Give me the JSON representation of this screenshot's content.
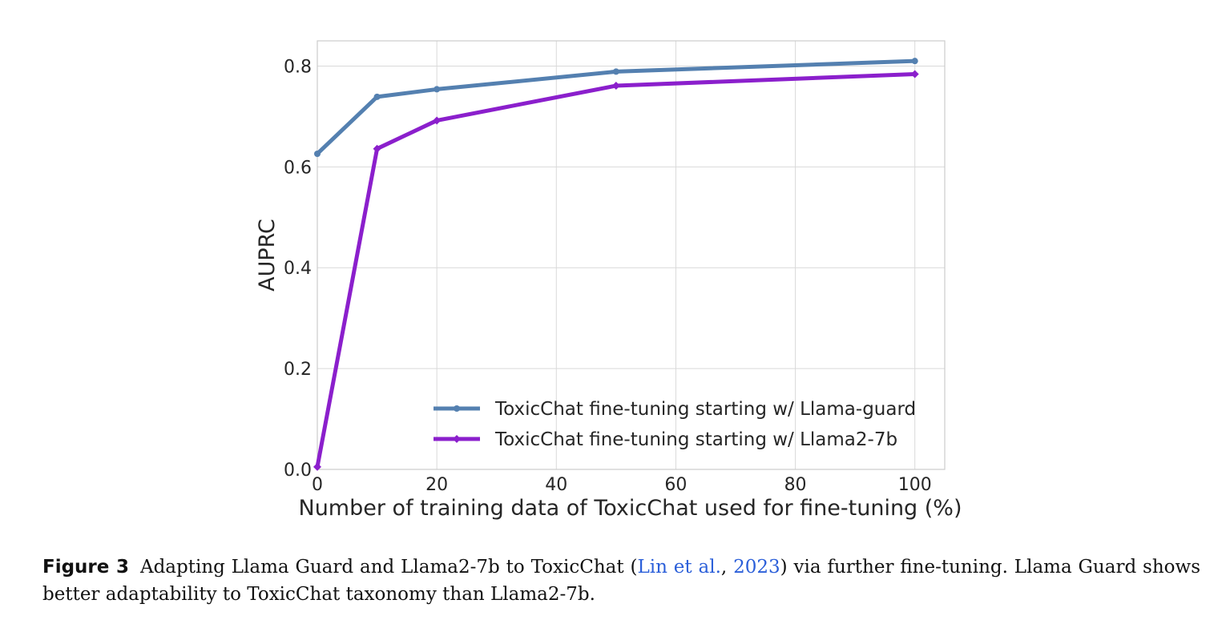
{
  "chart_data": {
    "type": "line",
    "title": "",
    "xlabel": "Number of training data of ToxicChat used for fine-tuning (%)",
    "ylabel": "AUPRC",
    "xlim": [
      0,
      105
    ],
    "ylim": [
      0,
      0.85
    ],
    "xticks": [
      0,
      20,
      40,
      60,
      80,
      100
    ],
    "yticks": [
      0.0,
      0.2,
      0.4,
      0.6,
      0.8
    ],
    "xtick_labels": [
      "0",
      "20",
      "40",
      "60",
      "80",
      "100"
    ],
    "ytick_labels": [
      "0.0",
      "0.2",
      "0.4",
      "0.6",
      "0.8"
    ],
    "grid": true,
    "legend_position": "lower-right",
    "series": [
      {
        "name": "ToxicChat fine-tuning starting w/ Llama-guard",
        "color": "#5480b0",
        "marker": "circle",
        "x": [
          0,
          10,
          20,
          50,
          100
        ],
        "y": [
          0.626,
          0.739,
          0.754,
          0.789,
          0.81
        ]
      },
      {
        "name": "ToxicChat fine-tuning starting w/ Llama2-7b",
        "color": "#8b1fcc",
        "marker": "diamond",
        "x": [
          0,
          10,
          20,
          50,
          100
        ],
        "y": [
          0.005,
          0.636,
          0.692,
          0.761,
          0.784
        ]
      }
    ]
  },
  "caption": {
    "figure_label": "Figure 3",
    "text_before": "Adapting Llama Guard and Llama2-7b to ToxicChat (",
    "cite_authors": "Lin et al.",
    "cite_sep": ", ",
    "cite_year": "2023",
    "text_after": ") via further fine-tuning. Llama Guard shows better adaptability to ToxicChat taxonomy than Llama2-7b."
  }
}
